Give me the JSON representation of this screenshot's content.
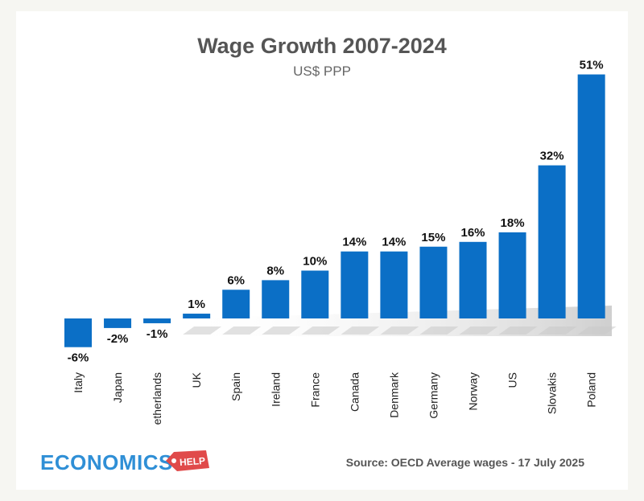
{
  "chart_data": {
    "type": "bar",
    "title": "Wage Growth 2007-2024",
    "subtitle": "US$ PPP",
    "categories": [
      "Italy",
      "Japan",
      "etherlands",
      "UK",
      "Spain",
      "Ireland",
      "France",
      "Canada",
      "Denmark",
      "Germany",
      "Norway",
      "US",
      "Slovakis",
      "Poland"
    ],
    "values": [
      -6,
      -2,
      -1,
      1,
      6,
      8,
      10,
      14,
      14,
      15,
      16,
      18,
      32,
      51
    ],
    "value_labels": [
      "-6%",
      "-2%",
      "-1%",
      "1%",
      "6%",
      "8%",
      "10%",
      "14%",
      "14%",
      "15%",
      "16%",
      "18%",
      "32%",
      "51%"
    ],
    "ylim": [
      -6,
      51
    ],
    "grid": false,
    "bar_color": "#0b6fc6",
    "xlabel": "",
    "ylabel": ""
  },
  "footer": {
    "source": "Source: OECD Average wages - 17 July 2025",
    "logo_text": "ECONOMICS",
    "logo_tag": "HELP"
  },
  "colors": {
    "logo_blue": "#2f8fd6",
    "logo_red": "#e04a4a"
  }
}
